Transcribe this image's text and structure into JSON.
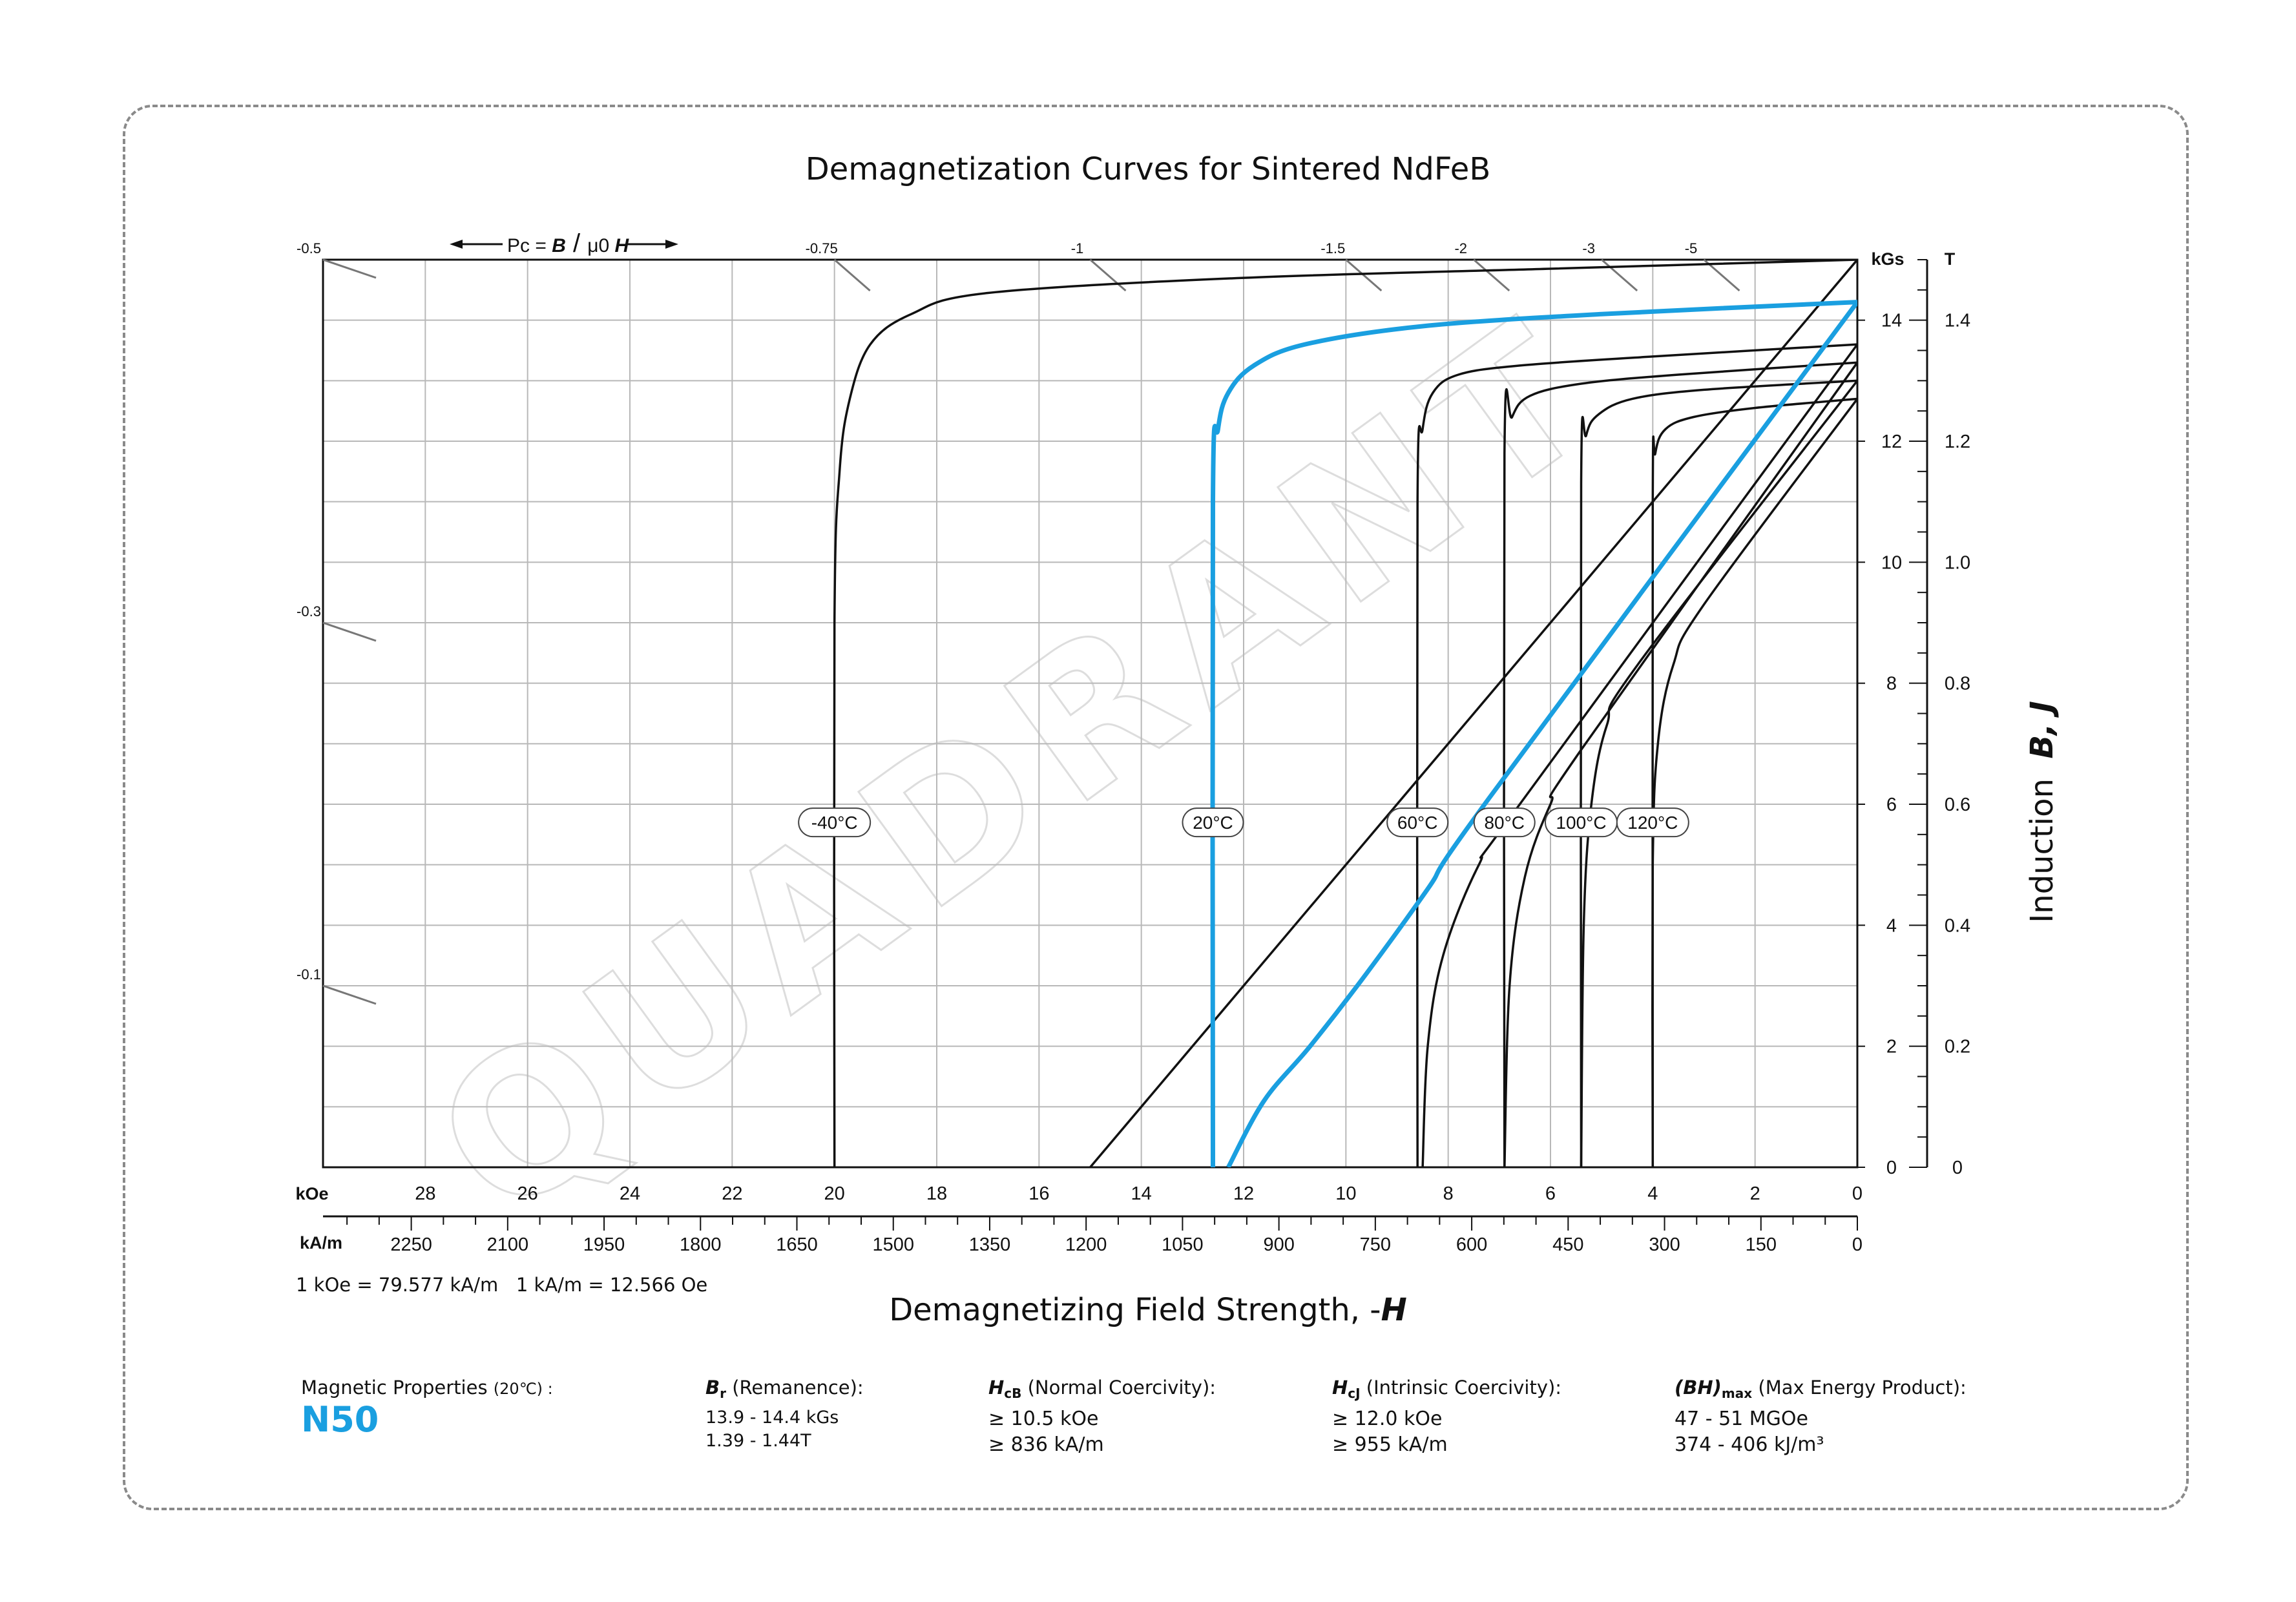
{
  "chart_data": {
    "type": "line",
    "title": "Demagnetization Curves for Sintered NdFeB",
    "x_axis": {
      "label_main": "Demagnetizing Field Strength, -",
      "label_symbol": "H",
      "unit_koe": "kOe",
      "unit_kam": "kA/m",
      "koe_range": [
        30,
        0
      ],
      "koe_ticks": [
        28,
        26,
        24,
        22,
        20,
        18,
        16,
        14,
        12,
        10,
        8,
        6,
        4,
        2,
        0
      ],
      "kam_ticks": [
        2250,
        2100,
        1950,
        1800,
        1650,
        1500,
        1350,
        1200,
        1050,
        900,
        750,
        600,
        450,
        300,
        150,
        0
      ]
    },
    "y_axis": {
      "label_main": "Induction",
      "label_symbols": "B, J",
      "unit_kgs": "kGs",
      "unit_t": "T",
      "range_kgs": [
        0,
        15
      ],
      "kgs_ticks": [
        0,
        2,
        4,
        6,
        8,
        10,
        12,
        14
      ],
      "t_ticks": [
        "0",
        "0.2",
        "0.4",
        "0.6",
        "0.8",
        "1.0",
        "1.2",
        "1.4"
      ]
    },
    "conversion_note": "1 kOe = 79.577 kA/m   1 kA/m = 12.566 Oe",
    "permeance": {
      "label_prefix": "Pc = ",
      "label_b": "B",
      "label_mu": "μ0",
      "label_h": "H",
      "top_ticks": [
        {
          "label": "-0.75",
          "h": 20
        },
        {
          "label": "-1",
          "h": 15
        },
        {
          "label": "-1.5",
          "h": 10
        },
        {
          "label": "-2",
          "h": 7.5
        },
        {
          "label": "-3",
          "h": 5
        },
        {
          "label": "-5",
          "h": 3
        }
      ],
      "left_ticks": [
        {
          "label": "-0.5",
          "b": 15
        },
        {
          "label": "-0.3",
          "b": 9
        },
        {
          "label": "-0.1",
          "b": 3
        }
      ]
    },
    "series": [
      {
        "name": "-40°C",
        "highlight": false,
        "br": 15.0,
        "hcj": 20.0,
        "b_line": [
          [
            0,
            15.0
          ],
          [
            15.0,
            0
          ]
        ],
        "j_curve": [
          [
            0,
            15.0
          ],
          [
            6,
            14.85
          ],
          [
            12,
            14.7
          ],
          [
            17,
            14.45
          ],
          [
            18.5,
            14.1
          ],
          [
            19.3,
            13.6
          ],
          [
            19.7,
            12.7
          ],
          [
            19.9,
            11.5
          ],
          [
            20.0,
            9
          ],
          [
            20.0,
            0
          ]
        ]
      },
      {
        "name": "20°C",
        "highlight": true,
        "br": 14.3,
        "hcj": 12.6,
        "b_line": [
          [
            0,
            14.3
          ],
          [
            7.2,
            6.1
          ],
          [
            8.4,
            4.6
          ],
          [
            9.6,
            3.2
          ],
          [
            10.7,
            2.0
          ],
          [
            11.6,
            1.1
          ],
          [
            12.3,
            0
          ]
        ],
        "j_curve": [
          [
            0,
            14.3
          ],
          [
            5,
            14.1
          ],
          [
            8.5,
            13.9
          ],
          [
            10.8,
            13.6
          ],
          [
            11.8,
            13.25
          ],
          [
            12.3,
            12.8
          ],
          [
            12.5,
            12.2
          ],
          [
            12.6,
            11
          ],
          [
            12.6,
            0
          ]
        ]
      },
      {
        "name": "60°C",
        "highlight": false,
        "br": 13.6,
        "hcj": 8.6,
        "b_line": [
          [
            0,
            13.6
          ],
          [
            6.6,
            6.0
          ],
          [
            7.4,
            5.0
          ],
          [
            8.1,
            3.5
          ],
          [
            8.4,
            2.0
          ],
          [
            8.5,
            0
          ]
        ],
        "j_curve": [
          [
            0,
            13.6
          ],
          [
            4,
            13.4
          ],
          [
            6.6,
            13.25
          ],
          [
            7.8,
            13.1
          ],
          [
            8.3,
            12.8
          ],
          [
            8.5,
            12.2
          ],
          [
            8.6,
            11
          ],
          [
            8.6,
            0
          ]
        ]
      },
      {
        "name": "80°C",
        "highlight": false,
        "br": 13.3,
        "hcj": 6.9,
        "b_line": [
          [
            0,
            13.3
          ],
          [
            5.4,
            6.9
          ],
          [
            6.0,
            6.0
          ],
          [
            6.5,
            4.8
          ],
          [
            6.8,
            3.0
          ],
          [
            6.9,
            0
          ]
        ],
        "j_curve": [
          [
            0,
            13.3
          ],
          [
            3.5,
            13.1
          ],
          [
            5.4,
            12.95
          ],
          [
            6.4,
            12.75
          ],
          [
            6.75,
            12.4
          ],
          [
            6.9,
            11.8
          ],
          [
            6.9,
            0
          ]
        ]
      },
      {
        "name": "100°C",
        "highlight": false,
        "br": 13.0,
        "hcj": 5.4,
        "b_line": [
          [
            0,
            13.0
          ],
          [
            4.3,
            8.3
          ],
          [
            4.9,
            7.3
          ],
          [
            5.2,
            6.0
          ],
          [
            5.35,
            4.0
          ],
          [
            5.4,
            0
          ]
        ],
        "j_curve": [
          [
            0,
            13.0
          ],
          [
            3.0,
            12.85
          ],
          [
            4.4,
            12.7
          ],
          [
            5.05,
            12.45
          ],
          [
            5.3,
            12.1
          ],
          [
            5.4,
            11.3
          ],
          [
            5.4,
            0
          ]
        ]
      },
      {
        "name": "120°C",
        "highlight": false,
        "br": 12.7,
        "hcj": 4.0,
        "b_line": [
          [
            0,
            12.7
          ],
          [
            3.0,
            9.3
          ],
          [
            3.6,
            8.3
          ],
          [
            3.9,
            7.0
          ],
          [
            4.0,
            5.0
          ],
          [
            4.0,
            0
          ]
        ],
        "j_curve": [
          [
            0,
            12.7
          ],
          [
            2.0,
            12.55
          ],
          [
            3.2,
            12.4
          ],
          [
            3.75,
            12.2
          ],
          [
            3.95,
            11.8
          ],
          [
            4.0,
            11.0
          ],
          [
            4.0,
            0
          ]
        ]
      }
    ],
    "series_labels": [
      {
        "text": "-40°C",
        "h": 20.0
      },
      {
        "text": "20°C",
        "h": 12.6
      },
      {
        "text": "60°C",
        "h": 8.6
      },
      {
        "text": "80°C",
        "h": 6.9
      },
      {
        "text": "100°C",
        "h": 5.4
      },
      {
        "text": "120°C",
        "h": 4.0
      }
    ],
    "series_label_b": 5.7,
    "highlight_color": "#1a9fe0"
  },
  "properties": {
    "heading": "Magnetic Properties",
    "heading_temp": "(20℃) :",
    "grade": "N50",
    "br": {
      "symbol": "B",
      "sub": "r",
      "desc": "(Remanence):",
      "v1": "13.9 - 14.4 kGs",
      "v2": "1.39 - 1.44T"
    },
    "hcb": {
      "symbol": "H",
      "sub": "cB",
      "desc": "(Normal Coercivity):",
      "v1": "≥ 10.5 kOe",
      "v2": "≥ 836 kA/m"
    },
    "hcj": {
      "symbol": "H",
      "sub": "cJ",
      "desc": "(Intrinsic Coercivity):",
      "v1": "≥ 12.0 kOe",
      "v2": "≥ 955 kA/m"
    },
    "bh": {
      "symbol": "BH",
      "sub": "max",
      "desc": "(Max Energy Product):",
      "v1": "47 - 51 MGOe",
      "v2": "374 - 406 kJ/m³"
    }
  }
}
